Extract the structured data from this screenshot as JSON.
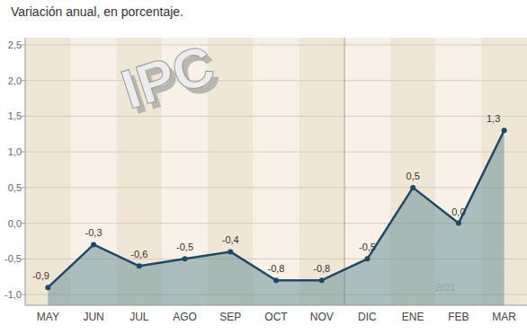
{
  "chart_data": {
    "type": "line",
    "subtitle": "Variación anual, en porcentaje.",
    "annotations": [
      "IPC",
      "2021"
    ],
    "categories": [
      "MAY",
      "JUN",
      "JUL",
      "AGO",
      "SEP",
      "OCT",
      "NOV",
      "DIC",
      "ENE",
      "FEB",
      "MAR"
    ],
    "values": [
      -0.9,
      -0.3,
      -0.6,
      -0.5,
      -0.4,
      -0.8,
      -0.8,
      -0.5,
      0.5,
      0.0,
      1.3
    ],
    "value_labels": [
      "-0,9",
      "-0,3",
      "-0,6",
      "-0,5",
      "-0,4",
      "-0,8",
      "-0,8",
      "-0,5",
      "0,5",
      "0,0",
      "1,3"
    ],
    "ylim": [
      -1.15,
      2.6
    ],
    "yticks": [
      {
        "value": -1.0,
        "label": "-1,0"
      },
      {
        "value": -0.5,
        "label": "-0,5"
      },
      {
        "value": 0.0,
        "label": "0,0"
      },
      {
        "value": 0.5,
        "label": "0,5"
      },
      {
        "value": 1.0,
        "label": "1,0"
      },
      {
        "value": 1.5,
        "label": "1,5"
      },
      {
        "value": 2.0,
        "label": "2,0"
      },
      {
        "value": 2.5,
        "label": "2,5"
      }
    ],
    "grid": true,
    "data_labels": true,
    "color": "#1d4a66",
    "marker": "circle"
  }
}
